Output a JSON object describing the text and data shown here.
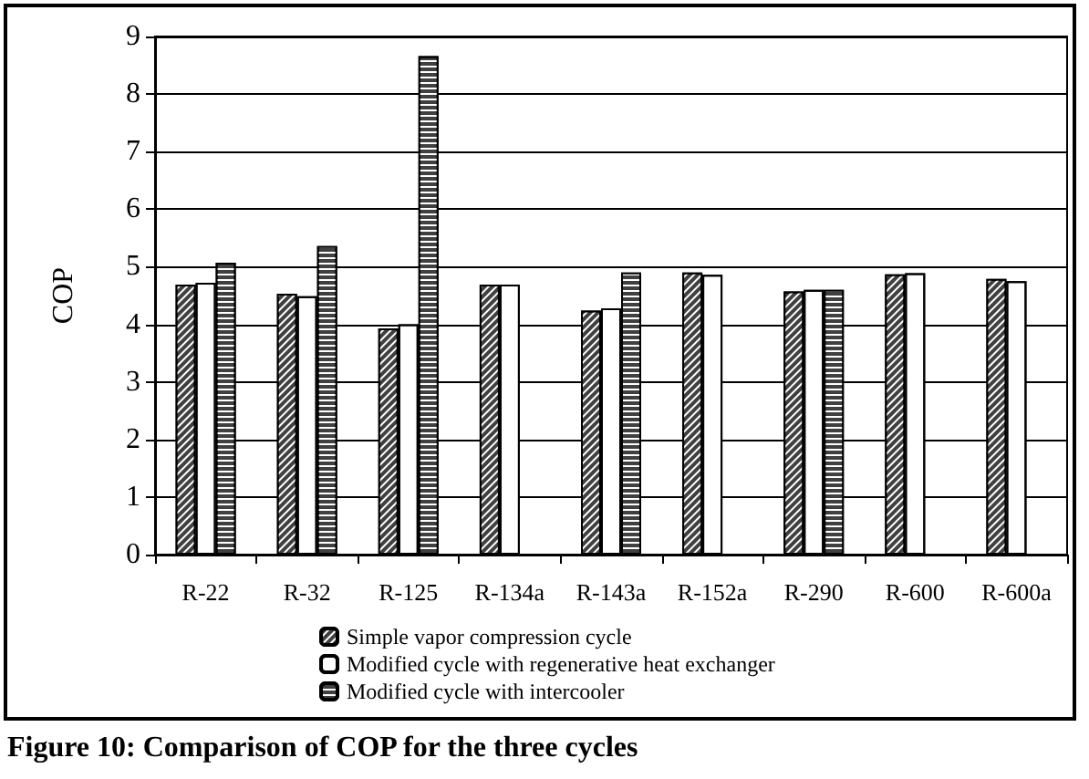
{
  "chart_data": {
    "type": "bar",
    "ylabel": "COP",
    "categories": [
      "R-22",
      "R-32",
      "R-125",
      "R-134a",
      "R-143a",
      "R-152a",
      "R-290",
      "R-600",
      "R-600a"
    ],
    "series": [
      {
        "name": "Simple vapor compression cycle",
        "color": "#404040",
        "values": [
          4.69,
          4.53,
          3.93,
          4.69,
          4.24,
          4.9,
          4.57,
          4.87,
          4.79
        ]
      },
      {
        "name": "Modified cycle with regenerative heat exchanger",
        "color": "#ffffff",
        "values": [
          4.72,
          4.49,
          4.0,
          4.69,
          4.28,
          4.86,
          4.6,
          4.89,
          4.75
        ]
      },
      {
        "name": "Modified cycle with intercooler",
        "color": "#404040",
        "values": [
          5.07,
          5.36,
          8.66,
          null,
          4.9,
          null,
          4.6,
          null,
          null
        ]
      }
    ],
    "ylim": [
      0,
      9
    ],
    "yticks": [
      0,
      1,
      2,
      3,
      4,
      5,
      6,
      7,
      8,
      9
    ],
    "grid": "y",
    "legend": "bottom",
    "annotations": [
      "Figure 10: Comparison of COP for the three cycles"
    ]
  }
}
